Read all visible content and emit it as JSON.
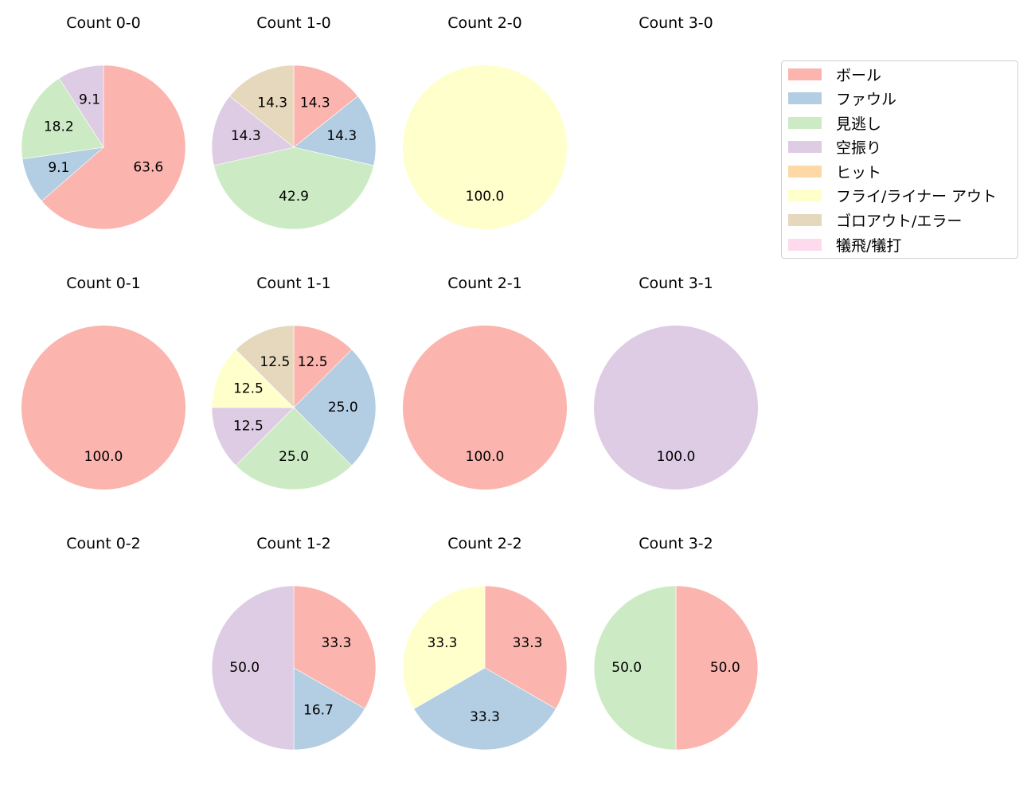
{
  "chart_data": {
    "type": "pie",
    "layout": {
      "rows": 3,
      "cols": 4,
      "start_angle": 90,
      "direction": "clockwise",
      "legend_position": "upper right"
    },
    "categories": [
      "ボール",
      "ファウル",
      "見逃し",
      "空振り",
      "ヒット",
      "フライ/ライナー アウト",
      "ゴロアウト/エラー",
      "犠飛/犠打"
    ],
    "colors": [
      "#fbb4ae",
      "#b3cde3",
      "#ccebc5",
      "#decbe4",
      "#fed9a6",
      "#ffffcc",
      "#e5d8bd",
      "#fddaec"
    ],
    "charts": [
      {
        "title": "Count 0-0",
        "row": 0,
        "col": 0,
        "values": [
          63.6,
          9.1,
          18.2,
          9.1,
          0,
          0,
          0,
          0
        ]
      },
      {
        "title": "Count 1-0",
        "row": 0,
        "col": 1,
        "values": [
          14.3,
          14.3,
          42.9,
          14.3,
          0,
          0,
          14.3,
          0
        ]
      },
      {
        "title": "Count 2-0",
        "row": 0,
        "col": 2,
        "values": [
          0,
          0,
          0,
          0,
          0,
          100.0,
          0,
          0
        ]
      },
      {
        "title": "Count 3-0",
        "row": 0,
        "col": 3,
        "values": []
      },
      {
        "title": "Count 0-1",
        "row": 1,
        "col": 0,
        "values": [
          100.0,
          0,
          0,
          0,
          0,
          0,
          0,
          0
        ]
      },
      {
        "title": "Count 1-1",
        "row": 1,
        "col": 1,
        "values": [
          12.5,
          25.0,
          25.0,
          12.5,
          0,
          12.5,
          12.5,
          0
        ]
      },
      {
        "title": "Count 2-1",
        "row": 1,
        "col": 2,
        "values": [
          100.0,
          0,
          0,
          0,
          0,
          0,
          0,
          0
        ]
      },
      {
        "title": "Count 3-1",
        "row": 1,
        "col": 3,
        "values": [
          0,
          0,
          0,
          100.0,
          0,
          0,
          0,
          0
        ]
      },
      {
        "title": "Count 0-2",
        "row": 2,
        "col": 0,
        "values": []
      },
      {
        "title": "Count 1-2",
        "row": 2,
        "col": 1,
        "values": [
          33.3,
          16.7,
          0,
          50.0,
          0,
          0,
          0,
          0
        ]
      },
      {
        "title": "Count 2-2",
        "row": 2,
        "col": 2,
        "values": [
          33.3,
          33.3,
          0,
          0,
          0,
          33.3,
          0,
          0
        ]
      },
      {
        "title": "Count 3-2",
        "row": 2,
        "col": 3,
        "values": [
          50.0,
          0,
          50.0,
          0,
          0,
          0,
          0,
          0
        ]
      }
    ]
  },
  "legend": {
    "items": [
      {
        "label": "ボール",
        "color": "#fbb4ae"
      },
      {
        "label": "ファウル",
        "color": "#b3cde3"
      },
      {
        "label": "見逃し",
        "color": "#ccebc5"
      },
      {
        "label": "空振り",
        "color": "#decbe4"
      },
      {
        "label": "ヒット",
        "color": "#fed9a6"
      },
      {
        "label": "フライ/ライナー アウト",
        "color": "#ffffcc"
      },
      {
        "label": "ゴロアウト/エラー",
        "color": "#e5d8bd"
      },
      {
        "label": "犠飛/犠打",
        "color": "#fddaec"
      }
    ]
  }
}
